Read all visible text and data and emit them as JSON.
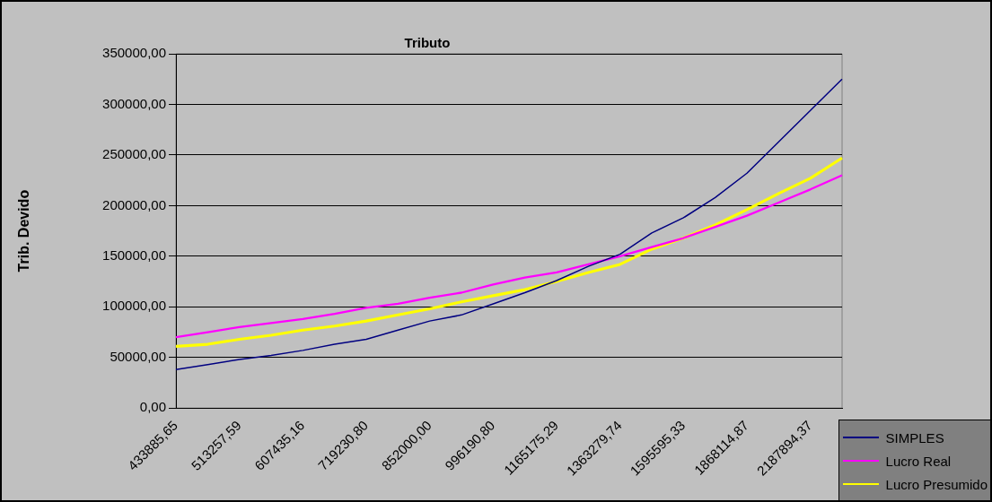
{
  "chart_data": {
    "type": "line",
    "title": "Tributo",
    "ylabel": "Trib. Devido",
    "categories": [
      "433885,65",
      null,
      "513257,59",
      null,
      "607435,16",
      null,
      "719230,80",
      null,
      "852000,00",
      null,
      "996190,80",
      null,
      "1165175,29",
      null,
      "1363279,74",
      null,
      "1595595,33",
      null,
      "1868114,87",
      null,
      "2187894,37",
      null
    ],
    "series": [
      {
        "name": "SIMPLES",
        "color": "#000080",
        "values": [
          38000,
          43000,
          48000,
          52000,
          57000,
          63000,
          68000,
          77000,
          86000,
          92000,
          103000,
          114000,
          126000,
          140000,
          152000,
          173000,
          188000,
          208000,
          232000,
          263000,
          294000,
          325000
        ]
      },
      {
        "name": "Lucro Real",
        "color": "#ff00ff",
        "values": [
          70000,
          75000,
          80000,
          84000,
          88000,
          93000,
          99000,
          103000,
          109000,
          114000,
          122000,
          129000,
          134000,
          142000,
          150000,
          159000,
          168000,
          179000,
          190000,
          203000,
          216000,
          230000
        ]
      },
      {
        "name": "Lucro Presumido",
        "color": "#ffff00",
        "values": [
          61000,
          63000,
          68000,
          72000,
          77000,
          81000,
          86000,
          92000,
          98000,
          105000,
          111000,
          117000,
          125000,
          134000,
          142000,
          157000,
          168000,
          181000,
          196000,
          212000,
          227000,
          247000
        ]
      }
    ],
    "ylim": [
      0,
      350000
    ],
    "yticks": [
      {
        "value": 0,
        "label": "0,00"
      },
      {
        "value": 50000,
        "label": "50000,00"
      },
      {
        "value": 100000,
        "label": "100000,00"
      },
      {
        "value": 150000,
        "label": "150000,00"
      },
      {
        "value": 200000,
        "label": "200000,00"
      },
      {
        "value": 250000,
        "label": "250000,00"
      },
      {
        "value": 300000,
        "label": "300000,00"
      },
      {
        "value": 350000,
        "label": "350000,00"
      }
    ],
    "grid": "y",
    "legend": "bottom right",
    "marker": "none",
    "line_style": "solid"
  }
}
